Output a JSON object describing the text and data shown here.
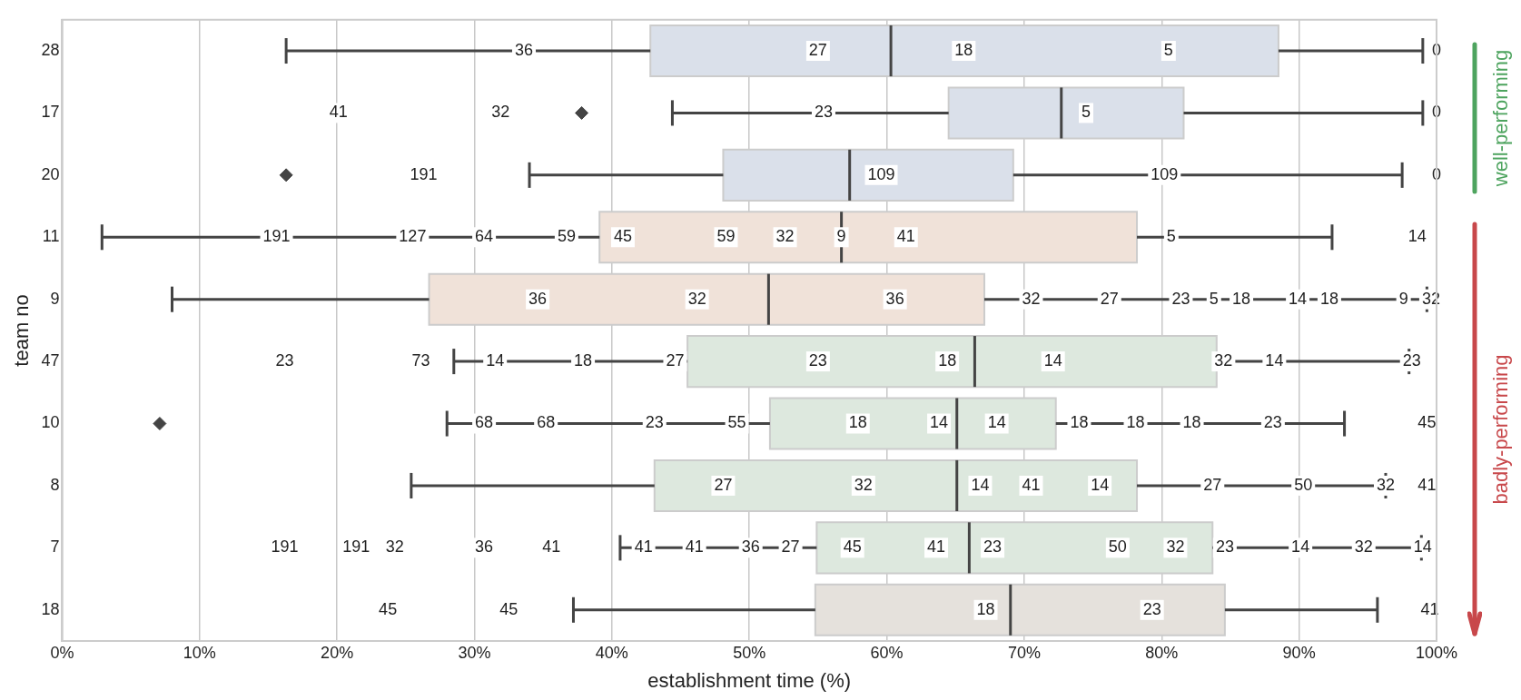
{
  "chart_data": {
    "type": "box",
    "orientation": "horizontal",
    "title": null,
    "categories": [
      "28",
      "17",
      "20",
      "11",
      "9",
      "47",
      "10",
      "8",
      "7",
      "18"
    ],
    "boxes": [
      {
        "low": 16.3,
        "q1": 42.8,
        "median": 60.3,
        "q3": 88.5,
        "high": 99.0
      },
      {
        "low": 44.4,
        "q1": 64.5,
        "median": 72.7,
        "q3": 81.6,
        "high": 99.0,
        "outliers": [
          37.8
        ]
      },
      {
        "low": 34.0,
        "q1": 48.1,
        "median": 57.3,
        "q3": 69.2,
        "high": 97.5,
        "outliers": [
          16.3
        ]
      },
      {
        "low": 2.9,
        "q1": 39.1,
        "median": 56.7,
        "q3": 78.2,
        "high": 92.4
      },
      {
        "low": 8.0,
        "q1": 26.7,
        "median": 51.4,
        "q3": 67.1,
        "high": 99.3
      },
      {
        "low": 28.5,
        "q1": 45.5,
        "median": 66.4,
        "q3": 84.0,
        "high": 98.0
      },
      {
        "low": 28.0,
        "q1": 51.5,
        "median": 65.1,
        "q3": 72.3,
        "high": 93.3,
        "outliers": [
          7.1
        ]
      },
      {
        "low": 25.4,
        "q1": 43.1,
        "median": 65.1,
        "q3": 78.2,
        "high": 96.3
      },
      {
        "low": 40.6,
        "q1": 54.9,
        "median": 66.0,
        "q3": 83.7,
        "high": 98.9
      },
      {
        "low": 37.2,
        "q1": 54.8,
        "median": 69.0,
        "q3": 84.6,
        "high": 95.7
      }
    ],
    "colors": [
      "#dae0ea",
      "#dae0ea",
      "#dae0ea",
      "#f0e2d9",
      "#f0e2d9",
      "#dde8de",
      "#dde8de",
      "#dde8de",
      "#dde8de",
      "#e5e1dc"
    ],
    "xlim": [
      0,
      100
    ],
    "xticks": [
      {
        "value": 0,
        "label": "0%"
      },
      {
        "value": 10,
        "label": "10%"
      },
      {
        "value": 20,
        "label": "20%"
      },
      {
        "value": 30,
        "label": "30%"
      },
      {
        "value": 40,
        "label": "40%"
      },
      {
        "value": 50,
        "label": "50%"
      },
      {
        "value": 60,
        "label": "60%"
      },
      {
        "value": 70,
        "label": "70%"
      },
      {
        "value": 80,
        "label": "80%"
      },
      {
        "value": 90,
        "label": "90%"
      },
      {
        "value": 100,
        "label": "100%"
      }
    ],
    "xlabel": "establishment time (%)",
    "ylabel": "team no",
    "grid": "x",
    "annotations": [
      "well-performing",
      "badly-performing",
      {
        "text": "36",
        "x": 33.6,
        "y": "28"
      },
      {
        "text": "27",
        "x": 55.0,
        "y": "28"
      },
      {
        "text": "18",
        "x": 65.6,
        "y": "28"
      },
      {
        "text": "5",
        "x": 80.5,
        "y": "28"
      },
      {
        "text": "0",
        "x": 100,
        "y": "28"
      },
      {
        "text": "41",
        "x": 20.1,
        "y": "17"
      },
      {
        "text": "32",
        "x": 31.9,
        "y": "17"
      },
      {
        "text": "23",
        "x": 55.4,
        "y": "17"
      },
      {
        "text": "5",
        "x": 74.5,
        "y": "17"
      },
      {
        "text": "0",
        "x": 100,
        "y": "17"
      },
      {
        "text": "191",
        "x": 26.3,
        "y": "20"
      },
      {
        "text": "109",
        "x": 59.6,
        "y": "20"
      },
      {
        "text": "109",
        "x": 80.2,
        "y": "20"
      },
      {
        "text": "0",
        "x": 100,
        "y": "20"
      },
      {
        "text": "191",
        "x": 15.6,
        "y": "11"
      },
      {
        "text": "127",
        "x": 25.5,
        "y": "11"
      },
      {
        "text": "64",
        "x": 30.7,
        "y": "11"
      },
      {
        "text": "59",
        "x": 36.7,
        "y": "11"
      },
      {
        "text": "45",
        "x": 40.8,
        "y": "11"
      },
      {
        "text": "59",
        "x": 48.3,
        "y": "11"
      },
      {
        "text": "32",
        "x": 52.6,
        "y": "11"
      },
      {
        "text": "9",
        "x": 56.7,
        "y": "11"
      },
      {
        "text": "41",
        "x": 61.4,
        "y": "11"
      },
      {
        "text": "5",
        "x": 80.7,
        "y": "11"
      },
      {
        "text": "14",
        "x": 98.6,
        "y": "11"
      },
      {
        "text": "36",
        "x": 34.6,
        "y": "9"
      },
      {
        "text": "32",
        "x": 46.2,
        "y": "9"
      },
      {
        "text": "36",
        "x": 60.6,
        "y": "9"
      },
      {
        "text": "32",
        "x": 70.5,
        "y": "9"
      },
      {
        "text": "27",
        "x": 76.2,
        "y": "9"
      },
      {
        "text": "23",
        "x": 81.4,
        "y": "9"
      },
      {
        "text": "5",
        "x": 83.8,
        "y": "9"
      },
      {
        "text": "18",
        "x": 85.8,
        "y": "9"
      },
      {
        "text": "14",
        "x": 89.9,
        "y": "9"
      },
      {
        "text": "18",
        "x": 92.2,
        "y": "9"
      },
      {
        "text": "9",
        "x": 97.6,
        "y": "9"
      },
      {
        "text": "32",
        "x": 99.6,
        "y": "9"
      },
      {
        "text": "23",
        "x": 16.2,
        "y": "47"
      },
      {
        "text": "73",
        "x": 26.1,
        "y": "47"
      },
      {
        "text": "14",
        "x": 31.5,
        "y": "47"
      },
      {
        "text": "18",
        "x": 37.9,
        "y": "47"
      },
      {
        "text": "27",
        "x": 44.6,
        "y": "47"
      },
      {
        "text": "23",
        "x": 55.0,
        "y": "47"
      },
      {
        "text": "18",
        "x": 64.4,
        "y": "47"
      },
      {
        "text": "14",
        "x": 72.1,
        "y": "47"
      },
      {
        "text": "32",
        "x": 84.5,
        "y": "47"
      },
      {
        "text": "14",
        "x": 88.2,
        "y": "47"
      },
      {
        "text": "23",
        "x": 98.2,
        "y": "47"
      },
      {
        "text": "68",
        "x": 30.7,
        "y": "10"
      },
      {
        "text": "68",
        "x": 35.2,
        "y": "10"
      },
      {
        "text": "23",
        "x": 43.1,
        "y": "10"
      },
      {
        "text": "55",
        "x": 49.1,
        "y": "10"
      },
      {
        "text": "18",
        "x": 57.9,
        "y": "10"
      },
      {
        "text": "14",
        "x": 63.8,
        "y": "10"
      },
      {
        "text": "14",
        "x": 68.0,
        "y": "10"
      },
      {
        "text": "18",
        "x": 74.0,
        "y": "10"
      },
      {
        "text": "18",
        "x": 78.1,
        "y": "10"
      },
      {
        "text": "18",
        "x": 82.2,
        "y": "10"
      },
      {
        "text": "23",
        "x": 88.1,
        "y": "10"
      },
      {
        "text": "45",
        "x": 99.3,
        "y": "10"
      },
      {
        "text": "27",
        "x": 48.1,
        "y": "8"
      },
      {
        "text": "32",
        "x": 58.3,
        "y": "8"
      },
      {
        "text": "14",
        "x": 66.8,
        "y": "8"
      },
      {
        "text": "41",
        "x": 70.5,
        "y": "8"
      },
      {
        "text": "14",
        "x": 75.5,
        "y": "8"
      },
      {
        "text": "27",
        "x": 83.7,
        "y": "8"
      },
      {
        "text": "50",
        "x": 90.3,
        "y": "8"
      },
      {
        "text": "32",
        "x": 96.3,
        "y": "8"
      },
      {
        "text": "41",
        "x": 99.3,
        "y": "8"
      },
      {
        "text": "191",
        "x": 16.2,
        "y": "7"
      },
      {
        "text": "191",
        "x": 21.4,
        "y": "7"
      },
      {
        "text": "32",
        "x": 24.2,
        "y": "7"
      },
      {
        "text": "36",
        "x": 30.7,
        "y": "7"
      },
      {
        "text": "41",
        "x": 35.6,
        "y": "7"
      },
      {
        "text": "41",
        "x": 42.3,
        "y": "7"
      },
      {
        "text": "41",
        "x": 46.0,
        "y": "7"
      },
      {
        "text": "36",
        "x": 50.1,
        "y": "7"
      },
      {
        "text": "27",
        "x": 53.0,
        "y": "7"
      },
      {
        "text": "45",
        "x": 57.5,
        "y": "7"
      },
      {
        "text": "41",
        "x": 63.6,
        "y": "7"
      },
      {
        "text": "23",
        "x": 67.7,
        "y": "7"
      },
      {
        "text": "50",
        "x": 76.8,
        "y": "7"
      },
      {
        "text": "32",
        "x": 81.0,
        "y": "7"
      },
      {
        "text": "23",
        "x": 84.6,
        "y": "7"
      },
      {
        "text": "14",
        "x": 90.1,
        "y": "7"
      },
      {
        "text": "32",
        "x": 94.7,
        "y": "7"
      },
      {
        "text": "14",
        "x": 99.0,
        "y": "7"
      },
      {
        "text": "45",
        "x": 23.7,
        "y": "18"
      },
      {
        "text": "45",
        "x": 32.5,
        "y": "18"
      },
      {
        "text": "18",
        "x": 67.2,
        "y": "18"
      },
      {
        "text": "23",
        "x": 79.3,
        "y": "18"
      },
      {
        "text": "41",
        "x": 99.5,
        "y": "18"
      }
    ]
  }
}
